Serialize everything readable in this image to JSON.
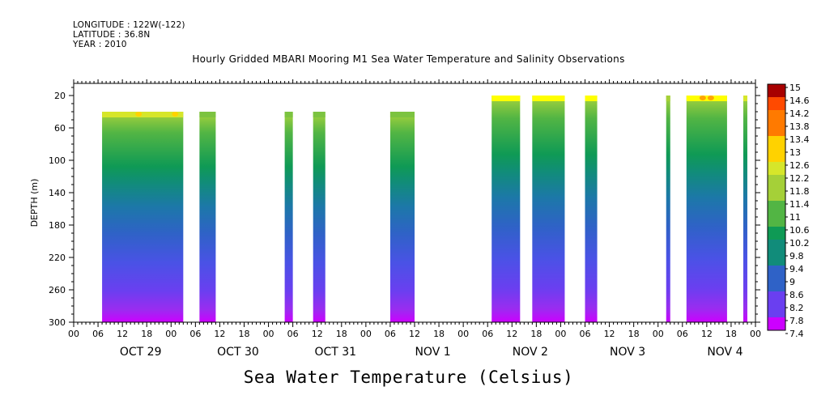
{
  "header": {
    "longitude": "LONGITUDE : 122W(-122)",
    "latitude": "LATITUDE : 36.8N",
    "year": "YEAR : 2010"
  },
  "chart_title": "Hourly Gridded MBARI Mooring M1 Sea Water Temperature and Salinity Observations",
  "colorbar_title": "Sea Water Temperature (Celsius)",
  "chart_data": {
    "type": "heatmap",
    "title": "Hourly Gridded MBARI Mooring M1 Sea Water Temperature and Salinity Observations",
    "xlabel": "",
    "ylabel": "DEPTH (m)",
    "x_hour_ticks": [
      "00",
      "06",
      "12",
      "18",
      "00",
      "06",
      "12",
      "18",
      "00",
      "06",
      "12",
      "18",
      "00",
      "06",
      "12",
      "18",
      "00",
      "06",
      "12",
      "18",
      "00",
      "06",
      "12",
      "18",
      "00",
      "06",
      "12",
      "18",
      "00"
    ],
    "x_day_labels": [
      "OCT 29",
      "OCT 30",
      "OCT 31",
      "NOV  1",
      "NOV  2",
      "NOV  3",
      "NOV  4"
    ],
    "xlim_hours": [
      0,
      168
    ],
    "ylim": [
      300,
      5
    ],
    "y_ticks": [
      20,
      60,
      100,
      140,
      180,
      220,
      260,
      300
    ],
    "colorbar": {
      "label": "Sea Water Temperature (Celsius)",
      "min": 7.4,
      "max": 15,
      "tick_labels": [
        "15",
        "14.6",
        "14.2",
        "13.8",
        "13.4",
        "13",
        "12.6",
        "12.2",
        "11.8",
        "11.4",
        "11",
        "10.6",
        "10.2",
        "9.8",
        "9.4",
        "9",
        "8.6",
        "8.2",
        "7.8",
        "7.4"
      ]
    },
    "data_blocks": [
      {
        "start_hour": 7,
        "end_hour": 27,
        "top_depth": 40,
        "surface_temp": 12.2,
        "warm_spots": [
          16,
          25
        ]
      },
      {
        "start_hour": 31,
        "end_hour": 35,
        "top_depth": 40,
        "surface_temp": 11.6
      },
      {
        "start_hour": 52,
        "end_hour": 54,
        "top_depth": 40,
        "surface_temp": 11.4
      },
      {
        "start_hour": 59,
        "end_hour": 62,
        "top_depth": 40,
        "surface_temp": 11.6
      },
      {
        "start_hour": 78,
        "end_hour": 84,
        "top_depth": 40,
        "surface_temp": 11.6
      },
      {
        "start_hour": 103,
        "end_hour": 110,
        "top_depth": 20,
        "surface_temp": 12.4
      },
      {
        "start_hour": 113,
        "end_hour": 121,
        "top_depth": 20,
        "surface_temp": 12.4
      },
      {
        "start_hour": 126,
        "end_hour": 129,
        "top_depth": 20,
        "surface_temp": 12.6
      },
      {
        "start_hour": 146,
        "end_hour": 147,
        "top_depth": 20,
        "surface_temp": 12.0
      },
      {
        "start_hour": 151,
        "end_hour": 161,
        "top_depth": 20,
        "surface_temp": 12.6,
        "warm_spots": [
          155,
          157
        ]
      },
      {
        "start_hour": 165,
        "end_hour": 166,
        "top_depth": 20,
        "surface_temp": 12.2
      }
    ]
  }
}
